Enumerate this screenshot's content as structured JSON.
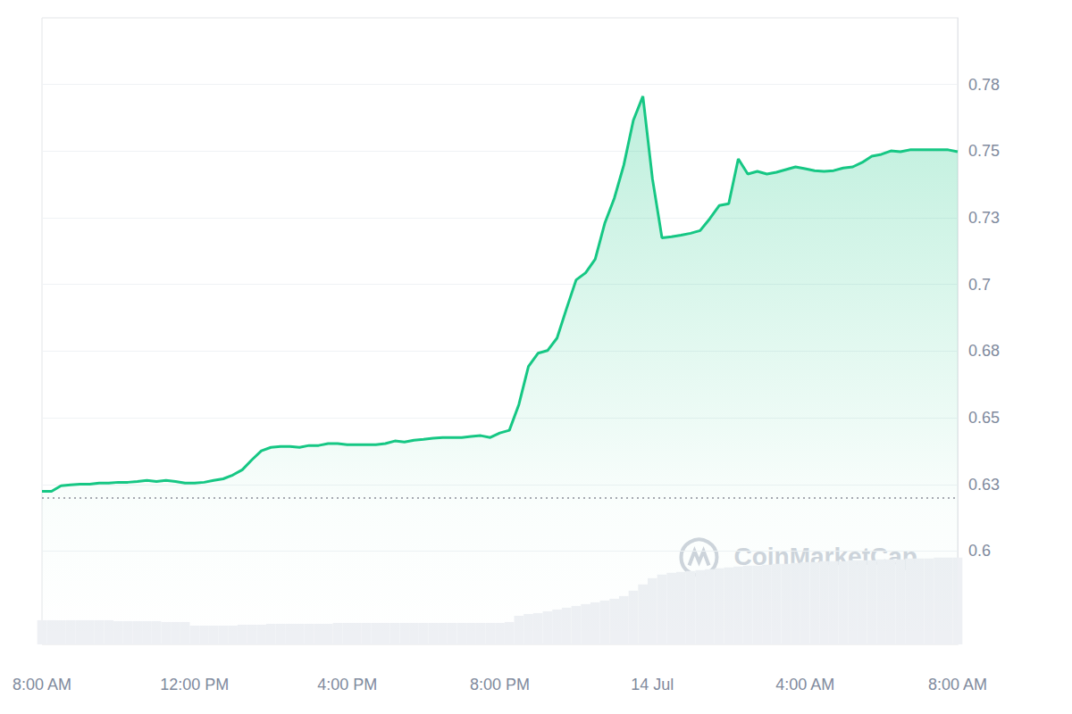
{
  "chart_data": {
    "type": "line",
    "watermark": "CoinMarketCap",
    "categories": [
      "8:00 AM",
      null,
      null,
      null,
      null,
      null,
      null,
      null,
      null,
      null,
      null,
      null,
      null,
      null,
      null,
      null,
      "12:00 PM",
      null,
      null,
      null,
      null,
      null,
      null,
      null,
      null,
      null,
      null,
      null,
      null,
      null,
      null,
      null,
      "4:00 PM",
      null,
      null,
      null,
      null,
      null,
      null,
      null,
      null,
      null,
      null,
      null,
      null,
      null,
      null,
      null,
      "8:00 PM",
      null,
      null,
      null,
      null,
      null,
      null,
      null,
      null,
      null,
      null,
      null,
      null,
      null,
      null,
      null,
      "14 Jul",
      null,
      null,
      null,
      null,
      null,
      null,
      null,
      null,
      null,
      null,
      null,
      null,
      null,
      null,
      null,
      "4:00 AM",
      null,
      null,
      null,
      null,
      null,
      null,
      null,
      null,
      null,
      null,
      null,
      null,
      null,
      null,
      null,
      "8:00 AM"
    ],
    "series": [
      {
        "type": "line",
        "color": "#16c784",
        "values": [
          0.6224,
          0.6224,
          0.6245,
          0.6248,
          0.6251,
          0.6251,
          0.6255,
          0.6255,
          0.6258,
          0.6258,
          0.6261,
          0.6265,
          0.6261,
          0.6265,
          0.6261,
          0.6255,
          0.6255,
          0.6258,
          0.6265,
          0.6271,
          0.6285,
          0.6305,
          0.6342,
          0.6376,
          0.6389,
          0.6392,
          0.6392,
          0.6389,
          0.6396,
          0.6396,
          0.6403,
          0.6403,
          0.6399,
          0.6399,
          0.6399,
          0.6399,
          0.6403,
          0.6413,
          0.6409,
          0.6416,
          0.6419,
          0.6423,
          0.6426,
          0.6426,
          0.6426,
          0.643,
          0.6433,
          0.6426,
          0.6443,
          0.6453,
          0.655,
          0.6692,
          0.6742,
          0.6752,
          0.6799,
          0.691,
          0.7017,
          0.7044,
          0.7095,
          0.7229,
          0.7323,
          0.7448,
          0.7616,
          0.7706,
          0.7397,
          0.7175,
          0.7179,
          0.7185,
          0.7192,
          0.7202,
          0.7246,
          0.7296,
          0.7303,
          0.7471,
          0.7414,
          0.7424,
          0.7414,
          0.7421,
          0.7431,
          0.7441,
          0.7434,
          0.7427,
          0.7424,
          0.7427,
          0.7437,
          0.7441,
          0.7458,
          0.7481,
          0.7488,
          0.7501,
          0.7498,
          0.7505,
          0.7505,
          0.7505,
          0.7505,
          0.7505,
          0.7498
        ]
      },
      {
        "type": "bar",
        "axis": "y2",
        "color": "#eef0f4",
        "values": [
          27,
          27,
          27,
          27,
          27,
          27,
          27,
          27,
          26,
          26,
          26,
          26,
          26,
          25,
          25,
          25,
          21,
          21,
          21,
          21,
          21,
          22,
          22,
          22,
          23,
          23,
          23,
          23,
          23,
          23,
          23,
          24,
          24,
          24,
          24,
          24,
          24,
          24,
          24,
          24,
          24,
          24,
          24,
          24,
          24,
          24,
          24,
          24,
          24,
          25,
          32,
          34,
          35,
          37,
          39,
          41,
          43,
          45,
          47,
          49,
          51,
          54,
          60,
          67,
          74,
          78,
          80,
          81,
          82,
          83,
          84,
          85,
          86,
          87,
          88,
          88,
          89,
          90,
          90,
          91,
          92,
          92,
          93,
          93,
          93,
          94,
          94,
          94,
          95,
          95,
          95,
          96,
          96,
          96,
          97,
          97,
          97
        ]
      }
    ],
    "baseline": 0.622,
    "ylim": [
      0.565,
      0.8
    ],
    "yticks": [
      0.6,
      {
        "value": 0.625,
        "label": "0.63"
      },
      0.65,
      {
        "value": 0.675,
        "label": "0.68"
      },
      0.7,
      {
        "value": 0.725,
        "label": "0.73"
      },
      0.75,
      {
        "value": 0.775,
        "label": "0.78"
      }
    ],
    "y2lim": [
      0,
      700
    ],
    "grid": true
  }
}
